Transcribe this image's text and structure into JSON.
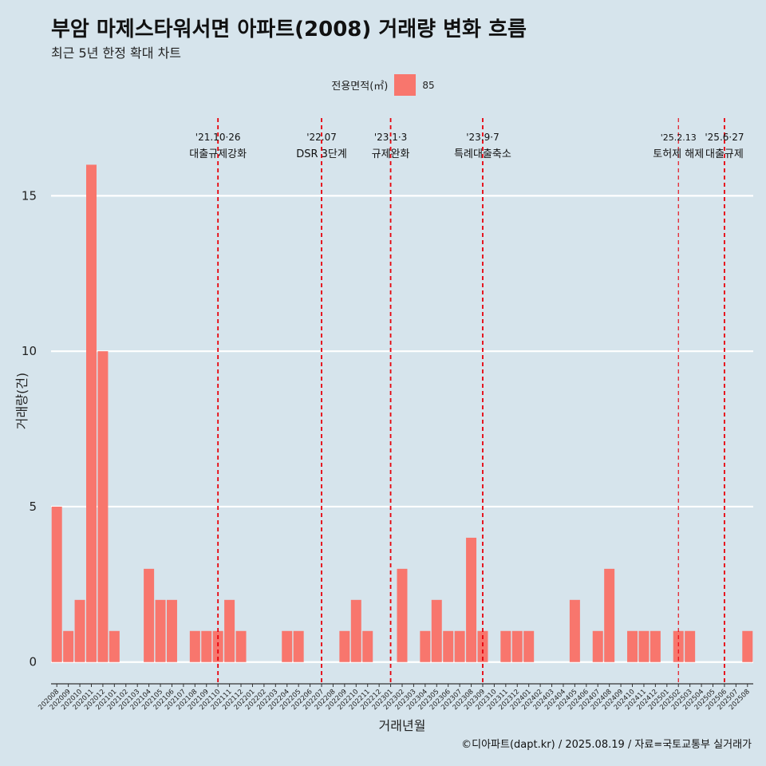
{
  "title": "부암 마제스타워서면 아파트(2008) 거래량 변화 흐름",
  "subtitle": "최근 5년 한정 확대 차트",
  "legend": {
    "title": "전용면적(㎡)",
    "label": "85",
    "color": "#f8766d"
  },
  "caption": "©디아파트(dapt.kr) / 2025.08.19 / 자료=국토교통부 실거래가",
  "chart_data": {
    "type": "bar",
    "xlabel": "거래년월",
    "ylabel": "거래량(건)",
    "ylim": [
      -0.7,
      17.5
    ],
    "yticks": [
      0,
      5,
      10,
      15
    ],
    "bar_color": "#f8766d",
    "grid": "horizontal",
    "legend_position": "top",
    "categories": [
      "202008",
      "202009",
      "202010",
      "202011",
      "202012",
      "202101",
      "202102",
      "202103",
      "202104",
      "202105",
      "202106",
      "202107",
      "202108",
      "202109",
      "202110",
      "202111",
      "202112",
      "202201",
      "202202",
      "202203",
      "202204",
      "202205",
      "202206",
      "202207",
      "202208",
      "202209",
      "202210",
      "202211",
      "202212",
      "202301",
      "202302",
      "202303",
      "202304",
      "202305",
      "202306",
      "202307",
      "202308",
      "202309",
      "202310",
      "202311",
      "202312",
      "202401",
      "202402",
      "202403",
      "202404",
      "202405",
      "202406",
      "202407",
      "202408",
      "202409",
      "202410",
      "202411",
      "202412",
      "202501",
      "202502",
      "202503",
      "202504",
      "202505",
      "202506",
      "202507",
      "202508"
    ],
    "series": [
      {
        "name": "85",
        "values": [
          5,
          1,
          2,
          16,
          10,
          1,
          0,
          0,
          3,
          2,
          2,
          0,
          1,
          1,
          1,
          2,
          1,
          0,
          0,
          0,
          1,
          1,
          0,
          0,
          0,
          1,
          2,
          1,
          0,
          0,
          3,
          0,
          1,
          2,
          1,
          1,
          4,
          1,
          0,
          1,
          1,
          1,
          0,
          0,
          0,
          2,
          0,
          1,
          3,
          0,
          1,
          1,
          1,
          0,
          1,
          1,
          0,
          0,
          0,
          0,
          1
        ]
      }
    ],
    "events": [
      {
        "category": "202110",
        "date": "'21.10·26",
        "label": "대출규제강화",
        "style": "thick"
      },
      {
        "category": "202207",
        "date": "'22.07",
        "label": "DSR 3단계",
        "style": "thick"
      },
      {
        "category": "202301",
        "date": "'23.1·3",
        "label": "규제완화",
        "style": "thick"
      },
      {
        "category": "202309",
        "date": "'23.9·7",
        "label": "특례대출축소",
        "style": "thick"
      },
      {
        "category": "202502",
        "date": "'25.2.13",
        "label": "토허제 해제",
        "style": "thin"
      },
      {
        "category": "202506",
        "date": "'25.6·27",
        "label": "대출규제",
        "style": "thick"
      }
    ]
  }
}
